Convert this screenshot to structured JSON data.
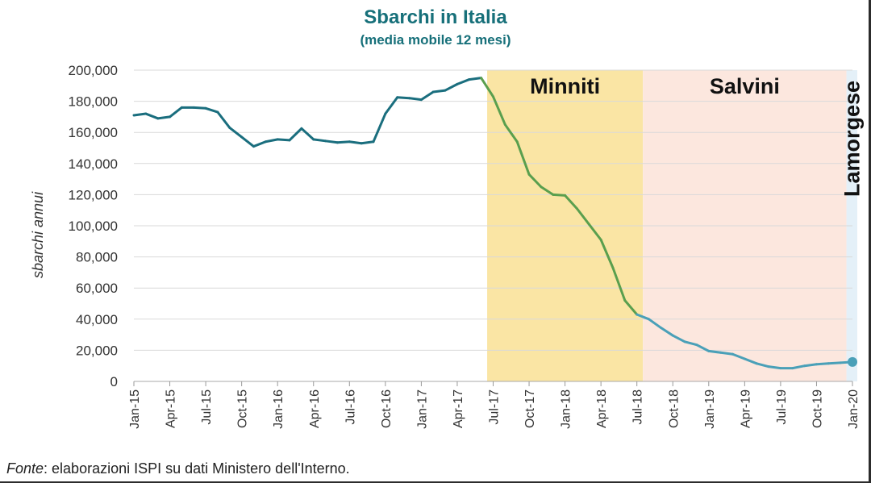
{
  "chart_data": {
    "type": "line",
    "title": "Sbarchi in Italia",
    "subtitle": "(media mobile 12 mesi)",
    "ylabel": "sbarchi annui",
    "xlabel": "",
    "ylim": [
      0,
      200000
    ],
    "y_ticks": [
      "0",
      "20,000",
      "40,000",
      "60,000",
      "80,000",
      "100,000",
      "120,000",
      "140,000",
      "160,000",
      "180,000",
      "200,000"
    ],
    "x_tick_labels": [
      "Jan-15",
      "Apr-15",
      "Jul-15",
      "Oct-15",
      "Jan-16",
      "Apr-16",
      "Jul-16",
      "Oct-16",
      "Jan-17",
      "Apr-17",
      "Jul-17",
      "Oct-17",
      "Jan-18",
      "Apr-18",
      "Jul-18",
      "Oct-18",
      "Jan-19",
      "Apr-19",
      "Jul-19",
      "Oct-19",
      "Jan-20"
    ],
    "periods": [
      {
        "name": "Minniti",
        "start_index": 29.5,
        "end_index": 42.5,
        "color": "#fae5a4",
        "orientation": "horizontal"
      },
      {
        "name": "Salvini",
        "start_index": 42.5,
        "end_index": 59.5,
        "color": "#fce7de",
        "orientation": "horizontal"
      },
      {
        "name": "Lamorgese",
        "start_index": 59.5,
        "end_index": 64.5,
        "color": "#e4f0f8",
        "orientation": "vertical"
      }
    ],
    "series": [
      {
        "name": "sbarchi annui",
        "color_default": "#1a6e7e",
        "color_minniti": "#5a9f4e",
        "color_after": "#4aa0b8",
        "values": [
          171000,
          172000,
          169000,
          170000,
          176000,
          176000,
          175500,
          173000,
          163000,
          157000,
          151000,
          154000,
          155500,
          155000,
          162500,
          155500,
          154500,
          153500,
          154000,
          153000,
          154000,
          172000,
          182500,
          182000,
          181000,
          186000,
          187000,
          191000,
          194000,
          195000,
          183000,
          165000,
          154000,
          133000,
          125000,
          120000,
          119500,
          111000,
          101000,
          91000,
          73000,
          52000,
          43000,
          40000,
          34500,
          29500,
          25500,
          23500,
          19500,
          18500,
          17500,
          14500,
          11500,
          9500,
          8500,
          8500,
          10000,
          11000,
          11500,
          12000,
          12500
        ]
      }
    ],
    "end_marker_index": 60
  },
  "source": {
    "label": "Fonte",
    "text": ": elaborazioni ISPI su dati Ministero dell'Interno."
  }
}
